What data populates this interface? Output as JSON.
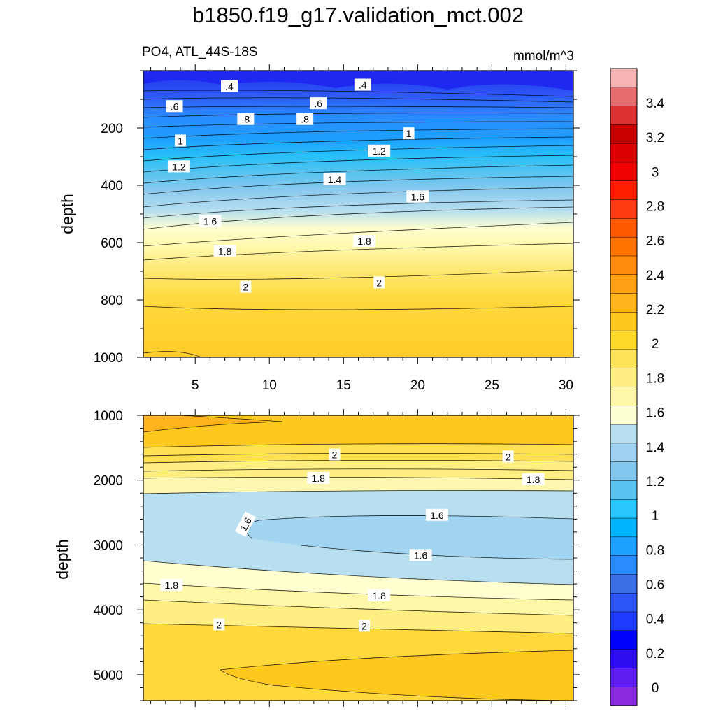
{
  "title": "b1850.f19_g17.validation_mct.002",
  "panel_label": "PO4, ATL_44S-18S",
  "units": "mmol/m^3",
  "chart_data": [
    {
      "type": "heatmap",
      "panel": "upper",
      "title": "PO4, ATL_44S-18S",
      "ylabel": "depth",
      "xlabel": "",
      "xlim": [
        1.5,
        30.5
      ],
      "ylim": [
        1000,
        0
      ],
      "x_ticks": [
        5,
        10,
        15,
        20,
        25,
        30
      ],
      "y_ticks": [
        200,
        400,
        600,
        800,
        1000
      ],
      "grid": false,
      "contour_labels": [
        {
          "text": ".4",
          "x": 7.3,
          "depth": 55
        },
        {
          "text": ".4",
          "x": 16.3,
          "depth": 50
        },
        {
          "text": ".6",
          "x": 3.6,
          "depth": 125
        },
        {
          "text": ".6",
          "x": 13.3,
          "depth": 115
        },
        {
          "text": ".8",
          "x": 8.4,
          "depth": 170
        },
        {
          "text": ".8",
          "x": 12.4,
          "depth": 170
        },
        {
          "text": "1",
          "x": 4.0,
          "depth": 245
        },
        {
          "text": "1",
          "x": 19.4,
          "depth": 220
        },
        {
          "text": "1.2",
          "x": 3.9,
          "depth": 335
        },
        {
          "text": "1.2",
          "x": 17.4,
          "depth": 280
        },
        {
          "text": "1.4",
          "x": 14.4,
          "depth": 380
        },
        {
          "text": "1.6",
          "x": 6.0,
          "depth": 525
        },
        {
          "text": "1.6",
          "x": 20.0,
          "depth": 440
        },
        {
          "text": "1.8",
          "x": 7.0,
          "depth": 630
        },
        {
          "text": "1.8",
          "x": 16.4,
          "depth": 595
        },
        {
          "text": "2",
          "x": 8.4,
          "depth": 755
        },
        {
          "text": "2",
          "x": 17.4,
          "depth": 740
        }
      ]
    },
    {
      "type": "heatmap",
      "panel": "lower",
      "ylabel": "depth",
      "xlabel": "",
      "xlim": [
        1.5,
        30.5
      ],
      "ylim": [
        5400,
        1000
      ],
      "y_ticks": [
        1000,
        2000,
        3000,
        4000,
        5000
      ],
      "grid": false,
      "contour_labels": [
        {
          "text": "2",
          "x": 14.4,
          "depth": 1610
        },
        {
          "text": "2",
          "x": 26.1,
          "depth": 1640
        },
        {
          "text": "1.8",
          "x": 13.3,
          "depth": 1970
        },
        {
          "text": "1.8",
          "x": 27.8,
          "depth": 1990
        },
        {
          "text": "1.6",
          "x": 8.4,
          "depth": 2680
        },
        {
          "text": "1.6",
          "x": 21.3,
          "depth": 2540
        },
        {
          "text": "1.6",
          "x": 20.2,
          "depth": 3160
        },
        {
          "text": "1.8",
          "x": 3.4,
          "depth": 3620
        },
        {
          "text": "1.8",
          "x": 17.4,
          "depth": 3780
        },
        {
          "text": "2",
          "x": 6.6,
          "depth": 4230
        },
        {
          "text": "2",
          "x": 16.4,
          "depth": 4250
        }
      ]
    }
  ],
  "colorbar": {
    "labels": [
      "0",
      "0.2",
      "0.4",
      "0.6",
      "0.8",
      "1",
      "1.2",
      "1.4",
      "1.6",
      "1.8",
      "2",
      "2.2",
      "2.4",
      "2.6",
      "2.8",
      "3",
      "3.2",
      "3.4"
    ],
    "colors": [
      "#8a2be2",
      "#5f1ef0",
      "#2e0df0",
      "#0000ff",
      "#1e3cff",
      "#2d54f5",
      "#3c6ee6",
      "#2a8bff",
      "#1ea0ff",
      "#00b4ff",
      "#28c8ff",
      "#5ac3f0",
      "#82c8ee",
      "#9fd2f0",
      "#b7dff0",
      "#ffffd4",
      "#fff7aa",
      "#ffee82",
      "#ffe45a",
      "#ffd828",
      "#ffc81e",
      "#ffb41e",
      "#ffa014",
      "#ff8c0a",
      "#ff7300",
      "#ff5a00",
      "#ff3c14",
      "#ff1e00",
      "#f00000",
      "#dc0000",
      "#c80000",
      "#dc3232",
      "#e66e6e",
      "#f8b4b4"
    ]
  }
}
